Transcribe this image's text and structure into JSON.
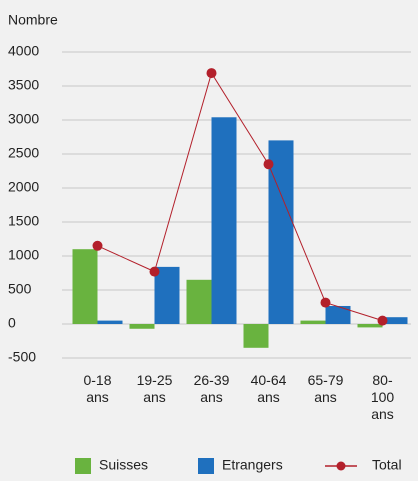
{
  "chart_data": {
    "type": "bar",
    "y_label": "Nombre",
    "categories": [
      "0-18 ans",
      "19-25 ans",
      "26-39 ans",
      "40-64 ans",
      "65-79 ans",
      "80-100 ans"
    ],
    "series": [
      {
        "name": "Suisses",
        "type": "bar",
        "color": "#69b33f",
        "values": [
          1100,
          -70,
          650,
          -350,
          50,
          -50
        ]
      },
      {
        "name": "Etrangers",
        "type": "bar",
        "color": "#1f70be",
        "values": [
          50,
          840,
          3040,
          2700,
          265,
          100
        ]
      },
      {
        "name": "Total",
        "type": "line",
        "color": "#b3202b",
        "values": [
          1150,
          770,
          3690,
          2350,
          315,
          50
        ]
      }
    ],
    "ylim": [
      -500,
      4000
    ],
    "yticks": [
      -500,
      0,
      500,
      1000,
      1500,
      2000,
      2500,
      3000,
      3500,
      4000
    ],
    "grid": true,
    "legend": "bottom"
  }
}
